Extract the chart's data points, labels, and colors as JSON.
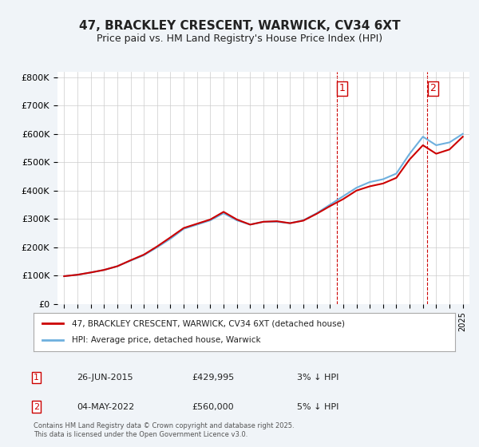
{
  "title": "47, BRACKLEY CRESCENT, WARWICK, CV34 6XT",
  "subtitle": "Price paid vs. HM Land Registry's House Price Index (HPI)",
  "footnote": "Contains HM Land Registry data © Crown copyright and database right 2025.\nThis data is licensed under the Open Government Licence v3.0.",
  "legend_line1": "47, BRACKLEY CRESCENT, WARWICK, CV34 6XT (detached house)",
  "legend_line2": "HPI: Average price, detached house, Warwick",
  "transaction1_date": "26-JUN-2015",
  "transaction1_price": "£429,995",
  "transaction1_hpi": "3% ↓ HPI",
  "transaction2_date": "04-MAY-2022",
  "transaction2_price": "£560,000",
  "transaction2_hpi": "5% ↓ HPI",
  "vline1_x": 2015.5,
  "vline2_x": 2022.33,
  "hpi_color": "#6eb0de",
  "price_color": "#cc0000",
  "vline_color": "#cc0000",
  "background_color": "#f0f4f8",
  "plot_bg_color": "#ffffff",
  "years": [
    1995,
    1996,
    1997,
    1998,
    1999,
    2000,
    2001,
    2002,
    2003,
    2004,
    2005,
    2006,
    2007,
    2008,
    2009,
    2010,
    2011,
    2012,
    2013,
    2014,
    2015,
    2016,
    2017,
    2018,
    2019,
    2020,
    2021,
    2022,
    2023,
    2024,
    2025
  ],
  "hpi_values": [
    98000,
    103000,
    111000,
    120000,
    133000,
    153000,
    172000,
    200000,
    230000,
    265000,
    280000,
    295000,
    320000,
    295000,
    280000,
    290000,
    290000,
    285000,
    295000,
    320000,
    350000,
    380000,
    410000,
    430000,
    440000,
    460000,
    530000,
    590000,
    560000,
    570000,
    600000
  ],
  "price_values": [
    98000,
    103000,
    111000,
    120000,
    133000,
    154000,
    174000,
    203000,
    235000,
    268000,
    283000,
    298000,
    325000,
    298000,
    280000,
    290000,
    292000,
    285000,
    294000,
    318000,
    345000,
    370000,
    400000,
    415000,
    425000,
    445000,
    510000,
    560000,
    530000,
    545000,
    590000
  ],
  "ylim": [
    0,
    820000
  ],
  "xlim": [
    1994.5,
    2025.5
  ],
  "yticks": [
    0,
    100000,
    200000,
    300000,
    400000,
    500000,
    600000,
    700000,
    800000
  ]
}
